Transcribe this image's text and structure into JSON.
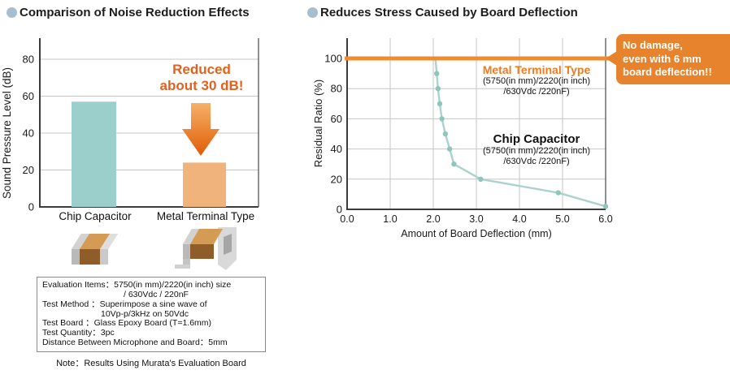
{
  "left_section": {
    "title": "Comparison of Noise Reduction Effects",
    "note_box": {
      "lines": [
        "Evaluation Items：5750(in mm)/2220(in inch) size",
        "/ 630Vdc / 220nF",
        "Test Method ：Superimpose a sine wave of",
        "10Vp-p/3kHz on 50Vdc",
        "Test Board ：Glass Epoxy Board (T=1.6mm)",
        "Test Quantity：3pc",
        "Distance Between Microphone and Board：5mm"
      ]
    },
    "footnote": "Note：Results Using Murata's Evaluation Board"
  },
  "right_section": {
    "title": "Reduces Stress Caused by Board Deflection",
    "callout_lines": [
      "No damage,",
      "even with 6 mm",
      "board deflection!!"
    ],
    "callout_color": "#e6832c"
  },
  "chart_data": [
    {
      "type": "bar",
      "title": "Comparison of Noise Reduction Effects",
      "categories": [
        "Chip Capacitor",
        "Metal Terminal Type"
      ],
      "values": [
        57,
        24
      ],
      "xlabel": "",
      "ylabel": "Sound Pressure Level (dB)",
      "ylim": [
        0,
        88
      ],
      "yticks": [
        0,
        20,
        40,
        60,
        80
      ],
      "grid": true,
      "bar_colors": [
        "#9bcfcc",
        "#f0b37b"
      ],
      "annotation_lines": [
        "Reduced",
        "about 30 dB!"
      ],
      "annotation_color": "#e5601a"
    },
    {
      "type": "line",
      "title": "Reduces Stress Caused by Board Deflection",
      "xlabel": "Amount of Board Deflection (mm)",
      "ylabel": "Residual Ratio (%)",
      "xlim": [
        0.0,
        6.0
      ],
      "ylim": [
        0,
        105
      ],
      "xticks": [
        "0.0",
        "1.0",
        "2.0",
        "3.0",
        "4.0",
        "5.0",
        "6.0"
      ],
      "yticks": [
        0,
        20,
        40,
        60,
        80,
        100
      ],
      "grid": true,
      "series": [
        {
          "name": "Metal Terminal Type",
          "spec_lines": [
            "(5750(in mm)/2220(in inch)",
            "/630Vdc /220nF)"
          ],
          "color": "#ee8c33",
          "label_color": "#ee7a1e",
          "markers": false,
          "points": [
            [
              0.0,
              100
            ],
            [
              6.0,
              100
            ]
          ]
        },
        {
          "name": "Chip Capacitor",
          "spec_lines": [
            "(5750(in mm)/2220(in inch)",
            "/630Vdc /220nF)"
          ],
          "color": "#a9d3cb",
          "marker_color": "#8ec5bc",
          "markers": true,
          "points": [
            [
              2.05,
              100
            ],
            [
              2.08,
              90
            ],
            [
              2.11,
              80
            ],
            [
              2.15,
              70
            ],
            [
              2.2,
              60
            ],
            [
              2.28,
              50
            ],
            [
              2.38,
              40
            ],
            [
              2.48,
              30
            ],
            [
              3.1,
              20
            ],
            [
              4.9,
              11
            ],
            [
              6.0,
              2
            ]
          ]
        }
      ]
    }
  ]
}
